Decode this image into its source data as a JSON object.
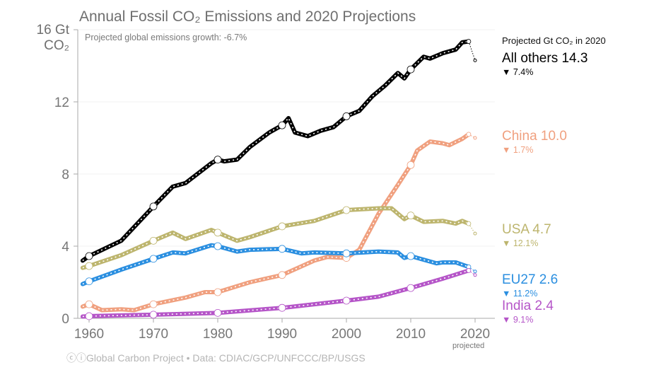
{
  "chart_data": {
    "type": "line",
    "title": "Annual Fossil CO₂ Emissions and 2020 Projections",
    "subtitle": "Projected global emissions growth: -6.7%",
    "ylabel_top": "16 Gt",
    "ylabel_unit": "CO₂",
    "ylim": [
      0,
      16
    ],
    "xlim": [
      1959,
      2023
    ],
    "yticks": [
      "0",
      "4",
      "8",
      "12"
    ],
    "xticks": [
      "1960",
      "1970",
      "1980",
      "1990",
      "2000",
      "2010",
      "2020"
    ],
    "projected_label": "projected",
    "legend_heading": "Projected Gt CO₂ in 2020",
    "grid": true,
    "series": [
      {
        "name": "All others",
        "value_label": "14.3",
        "change": "7.4%",
        "color": "#000000",
        "x": [
          1959,
          1960,
          1965,
          1970,
          1973,
          1975,
          1979,
          1980,
          1981,
          1983,
          1985,
          1988,
          1990,
          1991,
          1992,
          1994,
          1996,
          1998,
          2000,
          2002,
          2004,
          2006,
          2008,
          2009,
          2010,
          2012,
          2013,
          2015,
          2017,
          2018,
          2019
        ],
        "y": [
          3.2,
          3.45,
          4.3,
          6.2,
          7.3,
          7.5,
          8.6,
          8.8,
          8.7,
          8.8,
          9.5,
          10.3,
          10.7,
          11.1,
          10.3,
          10.1,
          10.4,
          10.6,
          11.2,
          11.5,
          12.3,
          12.9,
          13.6,
          13.3,
          13.8,
          14.5,
          14.4,
          14.7,
          14.9,
          15.3,
          15.35
        ],
        "projected": 14.3
      },
      {
        "name": "China",
        "value_label": "10.0",
        "change": "1.7%",
        "color": "#f0a07f",
        "x": [
          1959,
          1960,
          1962,
          1965,
          1967,
          1970,
          1975,
          1978,
          1980,
          1985,
          1990,
          1995,
          1997,
          2000,
          2002,
          2005,
          2008,
          2010,
          2011,
          2013,
          2015,
          2016,
          2018,
          2019
        ],
        "y": [
          0.65,
          0.78,
          0.45,
          0.5,
          0.45,
          0.78,
          1.15,
          1.45,
          1.45,
          2.0,
          2.4,
          3.2,
          3.4,
          3.35,
          3.8,
          5.8,
          7.4,
          8.5,
          9.3,
          9.8,
          9.7,
          9.6,
          9.95,
          10.2
        ],
        "projected": 10.0
      },
      {
        "name": "USA",
        "value_label": "4.7",
        "change": "12.1%",
        "color": "#bdb56e",
        "x": [
          1959,
          1960,
          1965,
          1970,
          1973,
          1975,
          1979,
          1980,
          1983,
          1985,
          1990,
          1995,
          2000,
          2005,
          2007,
          2009,
          2010,
          2012,
          2015,
          2017,
          2018,
          2019
        ],
        "y": [
          2.8,
          2.9,
          3.5,
          4.3,
          4.75,
          4.4,
          4.9,
          4.75,
          4.3,
          4.5,
          5.1,
          5.4,
          6.0,
          6.1,
          6.1,
          5.5,
          5.7,
          5.35,
          5.4,
          5.25,
          5.4,
          5.25
        ],
        "projected": 4.7
      },
      {
        "name": "EU27",
        "value_label": "2.6",
        "change": "11.2%",
        "color": "#2b8fe0",
        "x": [
          1959,
          1960,
          1965,
          1970,
          1973,
          1975,
          1979,
          1980,
          1983,
          1985,
          1990,
          1993,
          1995,
          2000,
          2005,
          2008,
          2009,
          2010,
          2014,
          2015,
          2017,
          2019
        ],
        "y": [
          1.9,
          2.05,
          2.7,
          3.3,
          3.65,
          3.6,
          4.05,
          4.0,
          3.7,
          3.8,
          3.85,
          3.6,
          3.65,
          3.6,
          3.7,
          3.65,
          3.35,
          3.45,
          3.05,
          3.1,
          3.1,
          2.85
        ],
        "projected": 2.6
      },
      {
        "name": "India",
        "value_label": "2.4",
        "change": "9.1%",
        "color": "#b555c8",
        "x": [
          1959,
          1960,
          1970,
          1980,
          1990,
          2000,
          2005,
          2010,
          2015,
          2019
        ],
        "y": [
          0.1,
          0.12,
          0.2,
          0.3,
          0.58,
          0.98,
          1.2,
          1.68,
          2.2,
          2.65
        ],
        "projected": 2.4
      }
    ]
  },
  "footer": "ⓒⓘGlobal Carbon Project  •  Data: CDIAC/GCP/UNFCCC/BP/USGS"
}
